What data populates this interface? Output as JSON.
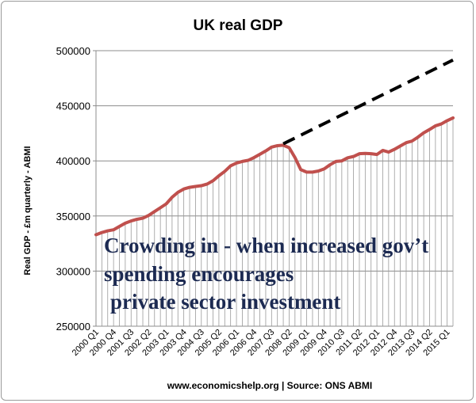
{
  "chart_data": {
    "type": "line",
    "title": "UK real GDP",
    "ylabel": "Real GDP - £m quarterly  - ABMI",
    "source": "www.economicshelp.org | Source: ONS ABMI",
    "ylim": [
      250000,
      500000
    ],
    "yticks": [
      250000,
      300000,
      350000,
      400000,
      450000,
      500000
    ],
    "ytick_labels": [
      "250000",
      "300000",
      "350000",
      "400000",
      "450000",
      "500000"
    ],
    "grid": true,
    "drop_lines": true,
    "x": [
      "2000 Q1",
      "2000 Q2",
      "2000 Q3",
      "2000 Q4",
      "2001 Q1",
      "2001 Q2",
      "2001 Q3",
      "2001 Q4",
      "2002 Q1",
      "2002 Q2",
      "2002 Q3",
      "2002 Q4",
      "2003 Q1",
      "2003 Q2",
      "2003 Q3",
      "2003 Q4",
      "2004 Q1",
      "2004 Q2",
      "2004 Q3",
      "2004 Q4",
      "2005 Q1",
      "2005 Q2",
      "2005 Q3",
      "2005 Q4",
      "2006 Q1",
      "2006 Q2",
      "2006 Q3",
      "2006 Q4",
      "2007 Q1",
      "2007 Q2",
      "2007 Q3",
      "2007 Q4",
      "2008 Q1",
      "2008 Q2",
      "2008 Q3",
      "2008 Q4",
      "2009 Q1",
      "2009 Q2",
      "2009 Q3",
      "2009 Q4",
      "2010 Q1",
      "2010 Q2",
      "2010 Q3",
      "2010 Q4",
      "2011 Q1",
      "2011 Q2",
      "2011 Q3",
      "2011 Q4",
      "2012 Q1",
      "2012 Q2",
      "2012 Q3",
      "2012 Q4",
      "2013 Q1",
      "2013 Q2",
      "2013 Q3",
      "2013 Q4",
      "2014 Q1",
      "2014 Q2",
      "2014 Q3",
      "2014 Q4",
      "2015 Q1",
      "2015 Q2"
    ],
    "x_tick_labels": [
      "2000 Q1",
      "2000 Q4",
      "2001 Q3",
      "2002 Q2",
      "2003 Q1",
      "2003 Q4",
      "2004 Q3",
      "2005 Q2",
      "2006 Q1",
      "2006 Q4",
      "2007 Q3",
      "2008 Q2",
      "2009 Q1",
      "2009 Q4",
      "2010 Q3",
      "2011 Q2",
      "2012 Q1",
      "2012 Q4",
      "2013 Q3",
      "2014 Q2",
      "2015 Q1"
    ],
    "series": [
      {
        "color": "#c0504d",
        "values": [
          333000,
          335000,
          336500,
          337500,
          340500,
          343500,
          345500,
          347000,
          348000,
          350500,
          354000,
          357500,
          361000,
          367000,
          371500,
          374500,
          376000,
          376800,
          377500,
          379000,
          382000,
          386500,
          390500,
          395500,
          398000,
          399500,
          400500,
          403000,
          406000,
          409000,
          412500,
          413800,
          414200,
          412000,
          403000,
          392000,
          389800,
          389800,
          390800,
          392800,
          396500,
          399500,
          400000,
          402800,
          404000,
          406500,
          406800,
          406500,
          405800,
          409500,
          408000,
          410500,
          413500,
          416500,
          418000,
          421500,
          425500,
          428500,
          431800,
          433500,
          436500,
          439000
        ]
      }
    ],
    "trend_line": {
      "style": "dashed",
      "color": "#000000",
      "from": {
        "x": "2008 Q1",
        "y": 415500
      },
      "to": {
        "x": "2015 Q2",
        "y": 491500
      }
    },
    "annotation": [
      "Crowding in - when increased gov’t",
      "spending encourages",
      "private sector investment"
    ]
  }
}
